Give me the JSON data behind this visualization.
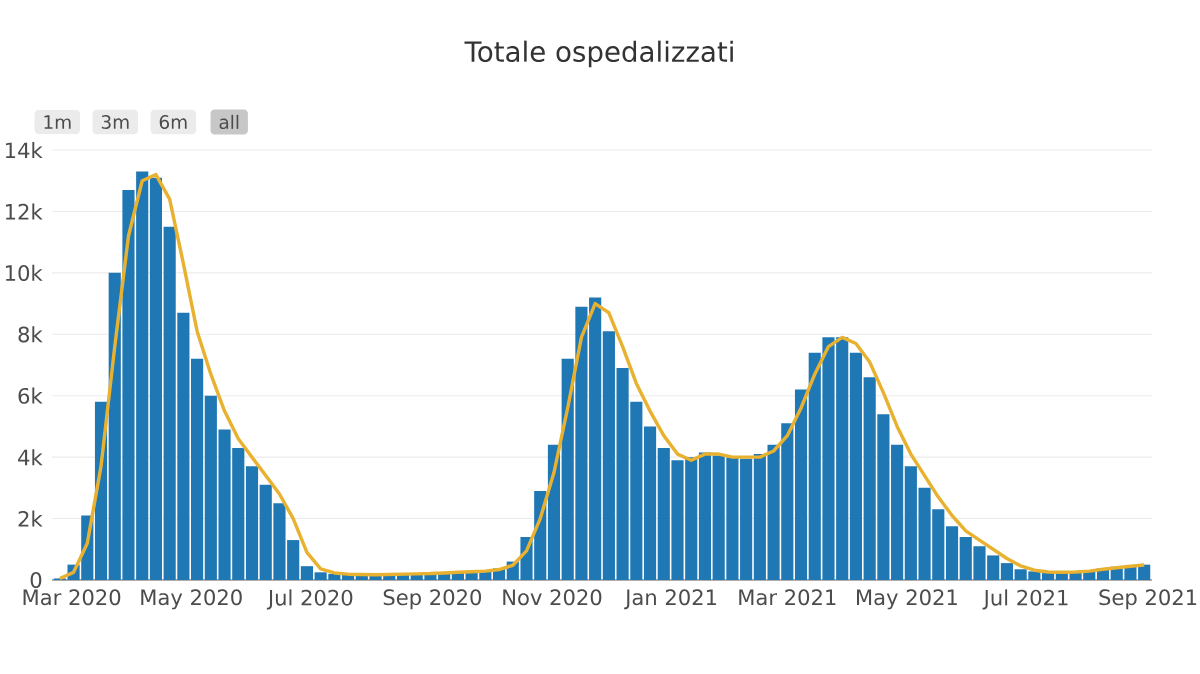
{
  "chart_data": {
    "type": "bar",
    "title": "Totale ospedalizzati",
    "annotations": [
      "1m",
      "3m",
      "6m",
      "all"
    ],
    "x": [
      "2020-02-24",
      "2020-03-02",
      "2020-03-09",
      "2020-03-16",
      "2020-03-23",
      "2020-03-30",
      "2020-04-06",
      "2020-04-13",
      "2020-04-20",
      "2020-04-27",
      "2020-05-04",
      "2020-05-11",
      "2020-05-18",
      "2020-05-25",
      "2020-06-01",
      "2020-06-08",
      "2020-06-15",
      "2020-06-22",
      "2020-06-29",
      "2020-07-06",
      "2020-07-13",
      "2020-07-20",
      "2020-07-27",
      "2020-08-03",
      "2020-08-10",
      "2020-08-17",
      "2020-08-24",
      "2020-08-31",
      "2020-09-07",
      "2020-09-14",
      "2020-09-21",
      "2020-09-28",
      "2020-10-05",
      "2020-10-12",
      "2020-10-19",
      "2020-10-26",
      "2020-11-02",
      "2020-11-09",
      "2020-11-16",
      "2020-11-23",
      "2020-11-30",
      "2020-12-07",
      "2020-12-14",
      "2020-12-21",
      "2020-12-28",
      "2021-01-04",
      "2021-01-11",
      "2021-01-18",
      "2021-01-25",
      "2021-02-01",
      "2021-02-08",
      "2021-02-15",
      "2021-02-22",
      "2021-03-01",
      "2021-03-08",
      "2021-03-15",
      "2021-03-22",
      "2021-03-29",
      "2021-04-05",
      "2021-04-12",
      "2021-04-19",
      "2021-04-26",
      "2021-05-03",
      "2021-05-10",
      "2021-05-17",
      "2021-05-24",
      "2021-05-31",
      "2021-06-07",
      "2021-06-14",
      "2021-06-21",
      "2021-06-28",
      "2021-07-05",
      "2021-07-12",
      "2021-07-19",
      "2021-07-26",
      "2021-08-02",
      "2021-08-09",
      "2021-08-16",
      "2021-08-23",
      "2021-08-30"
    ],
    "series": [
      {
        "color": "#1f77b4",
        "values": [
          50,
          500,
          2100,
          5800,
          10000,
          12700,
          13300,
          13100,
          11500,
          8700,
          7200,
          6000,
          4900,
          4300,
          3700,
          3100,
          2500,
          1300,
          450,
          250,
          200,
          180,
          170,
          170,
          180,
          190,
          200,
          220,
          240,
          260,
          280,
          300,
          380,
          600,
          1400,
          2900,
          4400,
          7200,
          8900,
          9200,
          8100,
          6900,
          5800,
          5000,
          4300,
          3900,
          4000,
          4150,
          4050,
          4000,
          3950,
          4100,
          4400,
          5100,
          6200,
          7400,
          7900,
          7900,
          7400,
          6600,
          5400,
          4400,
          3700,
          3000,
          2300,
          1750,
          1400,
          1100,
          800,
          550,
          350,
          280,
          240,
          250,
          270,
          320,
          380,
          430,
          470,
          500
        ]
      },
      {
        "type": "line",
        "color": "#e8b230",
        "values": [
          50,
          250,
          1200,
          3700,
          7600,
          11200,
          13000,
          13200,
          12400,
          10300,
          8100,
          6700,
          5500,
          4600,
          4000,
          3400,
          2800,
          2000,
          900,
          360,
          230,
          190,
          180,
          170,
          180,
          190,
          200,
          210,
          230,
          250,
          270,
          290,
          340,
          480,
          950,
          2000,
          3500,
          5600,
          7900,
          9000,
          8700,
          7600,
          6400,
          5500,
          4700,
          4100,
          3900,
          4100,
          4100,
          4000,
          4000,
          4000,
          4200,
          4700,
          5600,
          6700,
          7600,
          7900,
          7700,
          7100,
          6100,
          5000,
          4100,
          3400,
          2700,
          2100,
          1600,
          1300,
          1000,
          700,
          460,
          320,
          260,
          250,
          260,
          290,
          350,
          400,
          450,
          490
        ]
      }
    ],
    "xlim": [
      "2020-02-20",
      "2021-09-03"
    ],
    "xticks": [
      {
        "value": "2020-03-01",
        "label": "Mar 2020"
      },
      {
        "value": "2020-05-01",
        "label": "May 2020"
      },
      {
        "value": "2020-07-01",
        "label": "Jul 2020"
      },
      {
        "value": "2020-09-01",
        "label": "Sep 2020"
      },
      {
        "value": "2020-11-01",
        "label": "Nov 2020"
      },
      {
        "value": "2021-01-01",
        "label": "Jan 2021"
      },
      {
        "value": "2021-03-01",
        "label": "Mar 2021"
      },
      {
        "value": "2021-05-01",
        "label": "May 2021"
      },
      {
        "value": "2021-07-01",
        "label": "Jul 2021"
      },
      {
        "value": "2021-09-01",
        "label": "Sep 2021"
      }
    ],
    "ylim": [
      0,
      14000
    ],
    "yticks": [
      0,
      {
        "value": 2000,
        "label": "2k"
      },
      {
        "value": 4000,
        "label": "4k"
      },
      {
        "value": 6000,
        "label": "6k"
      },
      {
        "value": 8000,
        "label": "8k"
      },
      {
        "value": 10000,
        "label": "10k"
      },
      {
        "value": 12000,
        "label": "12k"
      },
      {
        "value": 14000,
        "label": "14k"
      }
    ],
    "grid": "y"
  }
}
